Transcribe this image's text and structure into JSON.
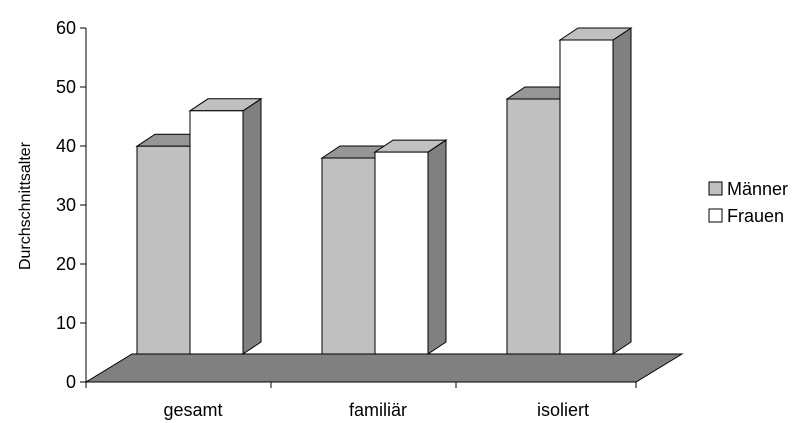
{
  "chart_data": {
    "type": "bar",
    "categories": [
      "gesamt",
      "familiär",
      "isoliert"
    ],
    "series": [
      {
        "name": "Männer",
        "values": [
          42,
          40,
          50
        ],
        "front": "#c0c0c0",
        "side": "#808080",
        "top": "#969696"
      },
      {
        "name": "Frauen",
        "values": [
          48,
          41,
          60
        ],
        "front": "#ffffff",
        "side": "#808080",
        "top": "#c0c0c0"
      }
    ],
    "ylabel": "Durchschnittsalter",
    "xlabel": "",
    "ylim": [
      0,
      60
    ],
    "yticks": [
      0,
      10,
      20,
      30,
      40,
      50,
      60
    ],
    "legend_position": "right",
    "floor_color": "#808080",
    "grid": false
  }
}
